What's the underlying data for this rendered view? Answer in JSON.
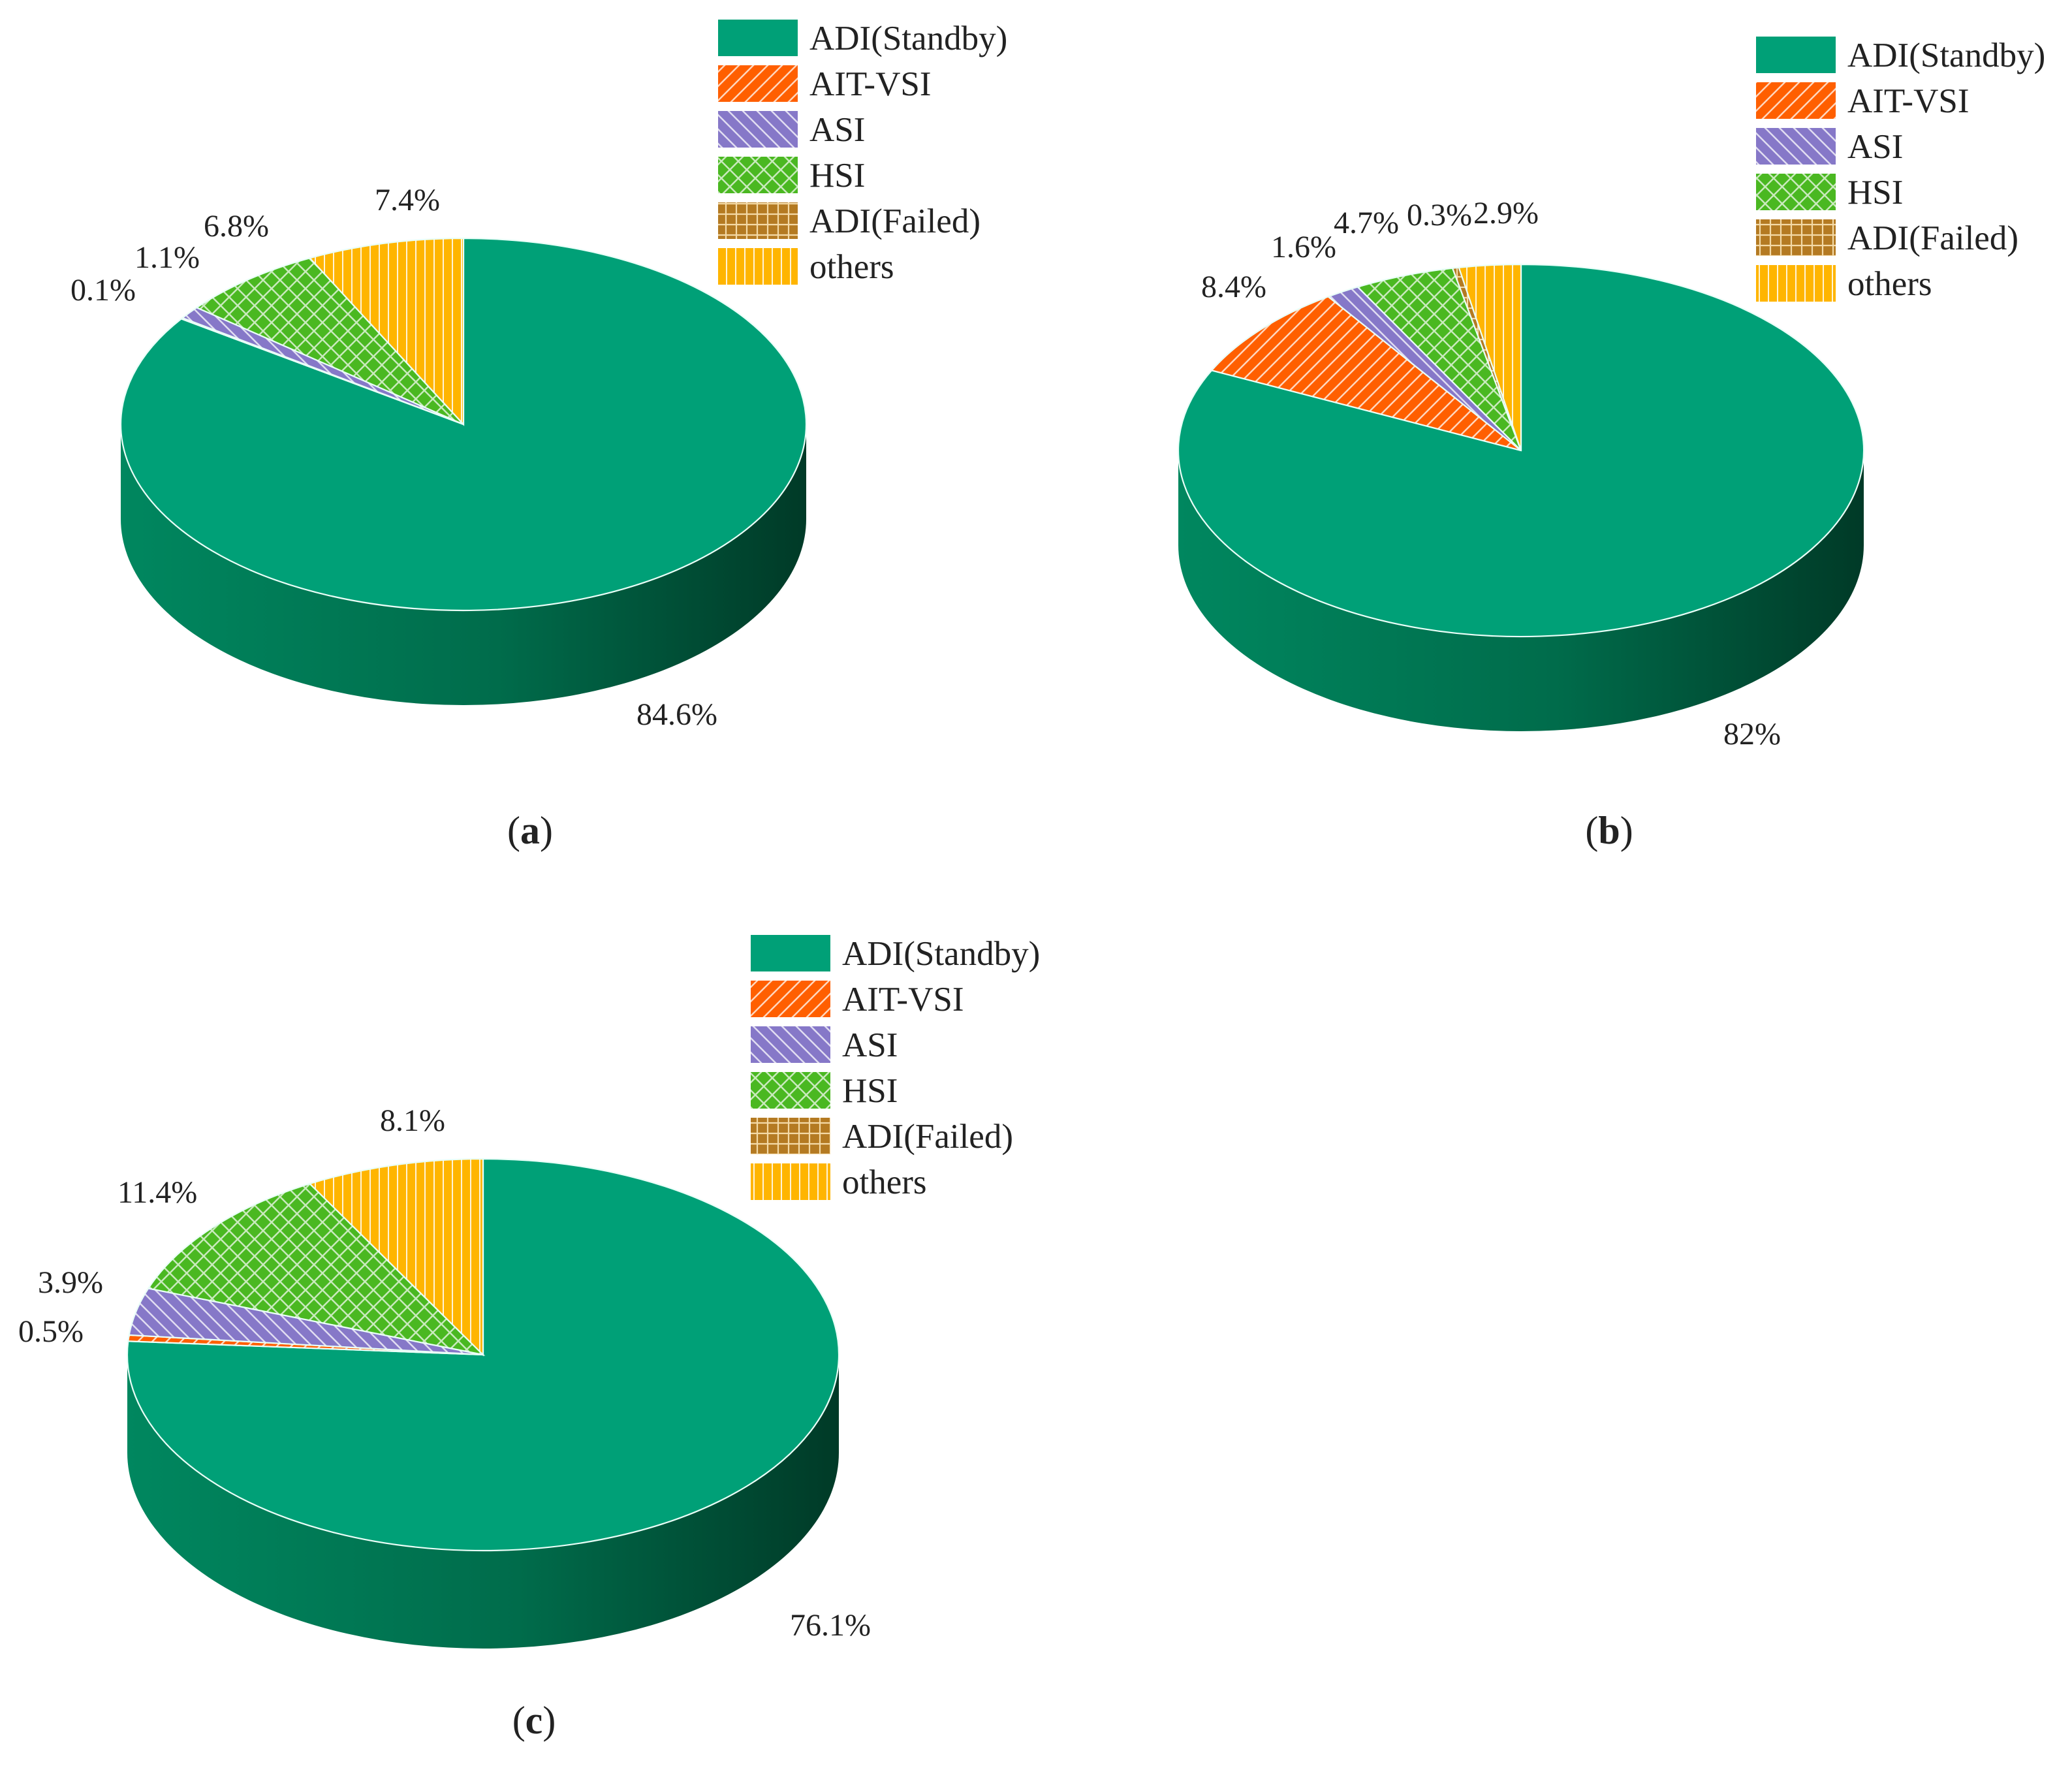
{
  "colors": {
    "ADI(Standby)": "#00a077",
    "AIT-VSI": "#ff5f00",
    "ASI": "#8678c8",
    "HSI": "#4ab821",
    "ADI(Failed)": "#b47a22",
    "others": "#ffb500"
  },
  "legend_items": [
    "ADI(Standby)",
    "AIT-VSI",
    "ASI",
    "HSI",
    "ADI(Failed)",
    "others"
  ],
  "chart_data": [
    {
      "type": "pie",
      "style": "3d",
      "caption": "a",
      "categories": [
        "ADI(Standby)",
        "AIT-VSI",
        "ASI",
        "HSI",
        "ADI(Failed)",
        "others"
      ],
      "values": [
        84.6,
        0.1,
        1.1,
        6.8,
        0,
        7.4
      ],
      "labels": [
        "84.6%",
        "0.1%",
        "1.1%",
        "6.8%",
        "",
        "7.4%"
      ],
      "legend": "top-right"
    },
    {
      "type": "pie",
      "style": "3d",
      "caption": "b",
      "categories": [
        "ADI(Standby)",
        "AIT-VSI",
        "ASI",
        "HSI",
        "ADI(Failed)",
        "others"
      ],
      "values": [
        82,
        8.4,
        1.6,
        4.7,
        0.3,
        2.9
      ],
      "labels": [
        "82%",
        "8.4%",
        "1.6%",
        "4.7%",
        "0.3%",
        "2.9%"
      ],
      "legend": "top-right"
    },
    {
      "type": "pie",
      "style": "3d",
      "caption": "c",
      "categories": [
        "ADI(Standby)",
        "AIT-VSI",
        "ASI",
        "HSI",
        "ADI(Failed)",
        "others"
      ],
      "values": [
        76.1,
        0.5,
        3.9,
        11.4,
        0,
        8.1
      ],
      "labels": [
        "76.1%",
        "0.5%",
        "3.9%",
        "11.4%",
        "",
        "8.1%"
      ],
      "legend": "top-right"
    }
  ]
}
